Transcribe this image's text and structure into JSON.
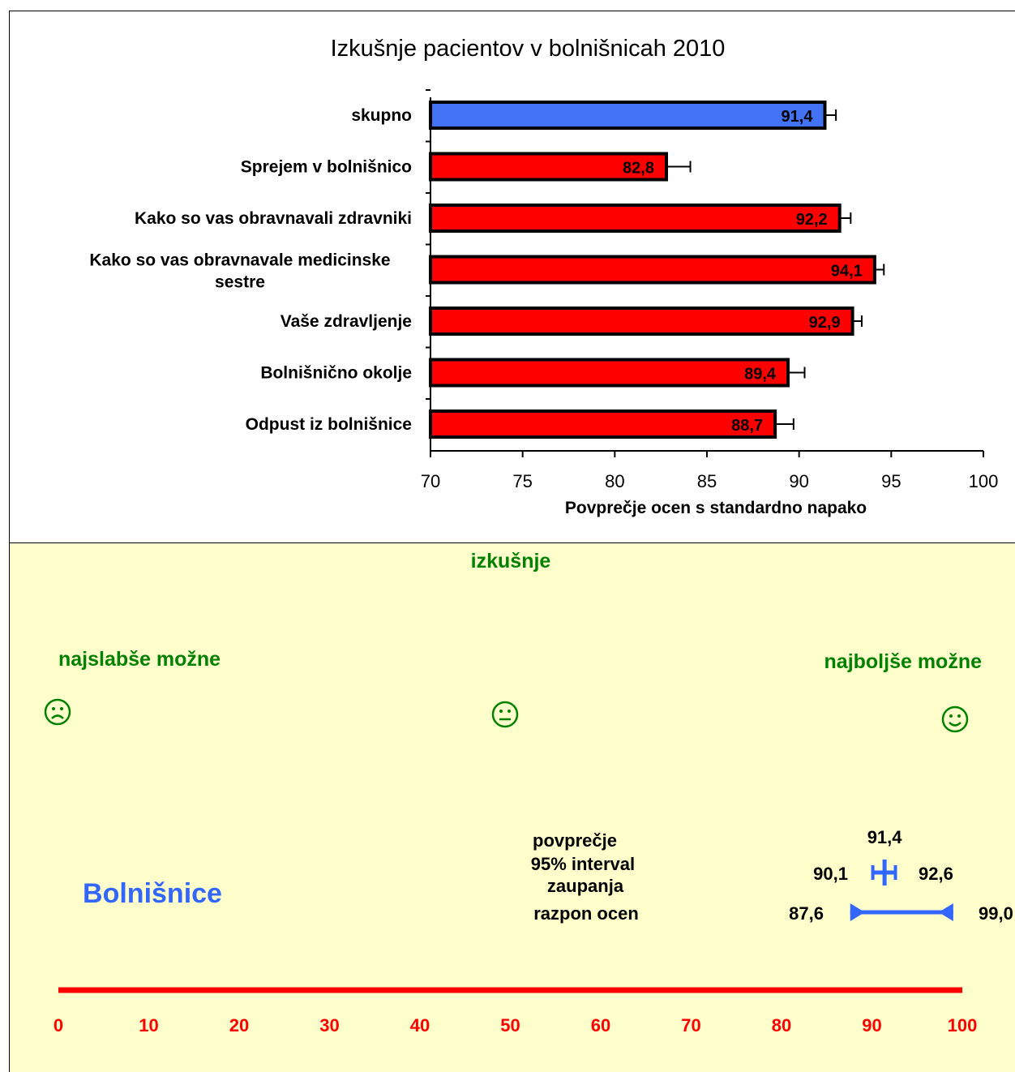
{
  "chart_data": [
    {
      "type": "bar",
      "orientation": "horizontal",
      "title": "Izkušnje pacientov v bolnišnicah 2010",
      "xlabel": "Povprečje ocen s standardno napako",
      "categories": [
        "skupno",
        "Sprejem v bolnišnico",
        "Kako so vas obravnavali zdravniki",
        [
          "Kako so vas obravnavale medicinske",
          "sestre"
        ],
        "Vaše zdravljenje",
        "Bolnišnično okolje",
        "Odpust iz bolnišnice"
      ],
      "values": [
        91.4,
        82.8,
        92.2,
        94.1,
        92.9,
        89.4,
        88.7
      ],
      "value_labels": [
        "91,4",
        "82,8",
        "92,2",
        "94,1",
        "92,9",
        "89,4",
        "88,7"
      ],
      "errors": [
        0.6,
        1.3,
        0.6,
        0.5,
        0.5,
        0.9,
        1.0
      ],
      "bar_colors": [
        "#4372f5",
        "#ff0000",
        "#ff0000",
        "#ff0000",
        "#ff0000",
        "#ff0000",
        "#ff0000"
      ],
      "xlim": [
        70,
        100
      ],
      "xticks": [
        70,
        75,
        80,
        85,
        90,
        95,
        100
      ],
      "xtick_labels": [
        "70",
        "75",
        "80",
        "85",
        "90",
        "95",
        "100"
      ],
      "grid": false,
      "legend": "none"
    },
    {
      "type": "scatter",
      "title": "izkušnje",
      "label_worst": "najslabše možne",
      "label_best": "najboljše možne",
      "face_icons": [
        "sad-face-icon",
        "neutral-face-icon",
        "happy-face-icon"
      ],
      "group_label": "Bolnišnice",
      "legend_mean": "povprečje",
      "legend_ci": "95% interval zaupanja",
      "legend_ci_lines": [
        "95% interval",
        "zaupanja"
      ],
      "legend_range": "razpon ocen",
      "mean": 91.4,
      "mean_label": "91,4",
      "ci_low": 90.1,
      "ci_low_label": "90,1",
      "ci_high": 92.6,
      "ci_high_label": "92,6",
      "range_min": 87.6,
      "range_min_label": "87,6",
      "range_max": 99.0,
      "range_max_label": "99,0",
      "xlim": [
        0,
        100
      ],
      "xticks": [
        0,
        10,
        20,
        30,
        40,
        50,
        60,
        70,
        80,
        90,
        100
      ],
      "xtick_labels": [
        "0",
        "10",
        "20",
        "30",
        "40",
        "50",
        "60",
        "70",
        "80",
        "90",
        "100"
      ],
      "colors": {
        "labels": "#008000",
        "group": "#3366ff",
        "marker": "#3366ff",
        "axis": "#ff0000",
        "text": "#000000"
      }
    }
  ]
}
